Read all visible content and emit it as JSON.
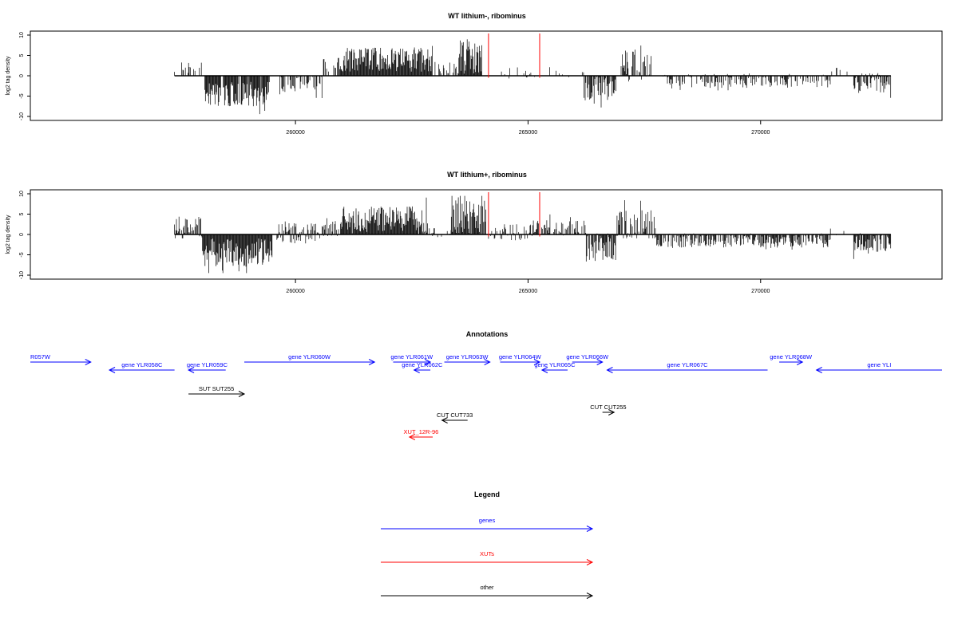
{
  "chart_data": [
    {
      "type": "bar",
      "title": "WT lithium-, ribominus",
      "xlabel": "",
      "ylabel": "log2 tag density",
      "xlim": [
        254300,
        273900
      ],
      "ylim": [
        -10,
        10
      ],
      "x_ticks": [
        "260000",
        "265000",
        "270000"
      ],
      "y_ticks": [
        "-10",
        "-5",
        "0",
        "5",
        "10"
      ],
      "markers": [
        264150,
        265250
      ],
      "marker_color": "#ff0000",
      "bar_color": "#000000",
      "segments": [
        {
          "start": 257400,
          "end": 258000,
          "mean": 2.0,
          "amp": 1.5,
          "density": 0.35
        },
        {
          "start": 258050,
          "end": 259450,
          "mean": -4.5,
          "amp": 3.0,
          "density": 0.95
        },
        {
          "start": 259650,
          "end": 260600,
          "mean": -2.0,
          "amp": 2.0,
          "density": 0.5
        },
        {
          "start": 260600,
          "end": 260950,
          "mean": 2.0,
          "amp": 2.5,
          "density": 0.4
        },
        {
          "start": 260950,
          "end": 262950,
          "mean": 4.0,
          "amp": 3.0,
          "density": 1.0
        },
        {
          "start": 263000,
          "end": 263500,
          "mean": 1.5,
          "amp": 2.0,
          "density": 0.4
        },
        {
          "start": 263500,
          "end": 264020,
          "mean": 4.5,
          "amp": 4.5,
          "density": 1.0
        },
        {
          "start": 264250,
          "end": 265300,
          "mean": 0.8,
          "amp": 1.5,
          "density": 0.12
        },
        {
          "start": 265300,
          "end": 266200,
          "mean": 0.8,
          "amp": 1.2,
          "density": 0.15
        },
        {
          "start": 266200,
          "end": 266900,
          "mean": -3.0,
          "amp": 3.0,
          "density": 0.8
        },
        {
          "start": 267000,
          "end": 267650,
          "mean": 2.5,
          "amp": 4.0,
          "density": 0.55
        },
        {
          "start": 267900,
          "end": 271500,
          "mean": -1.2,
          "amp": 1.8,
          "density": 0.5
        },
        {
          "start": 271500,
          "end": 271950,
          "mean": 1.0,
          "amp": 1.0,
          "density": 0.2
        },
        {
          "start": 272000,
          "end": 272800,
          "mean": -1.8,
          "amp": 2.5,
          "density": 0.8
        }
      ]
    },
    {
      "type": "bar",
      "title": "WT lithium+, ribominus",
      "xlabel": "",
      "ylabel": "log2 tag density",
      "xlim": [
        254300,
        273900
      ],
      "ylim": [
        -10,
        10
      ],
      "x_ticks": [
        "260000",
        "265000",
        "270000"
      ],
      "y_ticks": [
        "-10",
        "-5",
        "0",
        "5",
        "10"
      ],
      "markers": [
        264150,
        265250
      ],
      "marker_color": "#ff0000",
      "bar_color": "#000000",
      "segments": [
        {
          "start": 257400,
          "end": 258000,
          "mean": 1.5,
          "amp": 2.5,
          "density": 0.8
        },
        {
          "start": 258000,
          "end": 259500,
          "mean": -4.5,
          "amp": 3.5,
          "density": 1.0
        },
        {
          "start": 259600,
          "end": 260650,
          "mean": 0.3,
          "amp": 2.5,
          "density": 0.85
        },
        {
          "start": 260650,
          "end": 261000,
          "mean": 2.0,
          "amp": 2.5,
          "density": 0.6
        },
        {
          "start": 261000,
          "end": 262850,
          "mean": 3.5,
          "amp": 3.5,
          "density": 1.0
        },
        {
          "start": 262850,
          "end": 263350,
          "mean": 0.5,
          "amp": 1.5,
          "density": 0.4
        },
        {
          "start": 263350,
          "end": 264100,
          "mean": 4.0,
          "amp": 4.5,
          "density": 1.0
        },
        {
          "start": 264150,
          "end": 265100,
          "mean": 0.5,
          "amp": 2.0,
          "density": 0.55
        },
        {
          "start": 265100,
          "end": 266250,
          "mean": 1.5,
          "amp": 2.0,
          "density": 0.6
        },
        {
          "start": 266250,
          "end": 266900,
          "mean": -3.0,
          "amp": 3.5,
          "density": 0.9
        },
        {
          "start": 266900,
          "end": 267750,
          "mean": 2.5,
          "amp": 3.5,
          "density": 0.8
        },
        {
          "start": 267750,
          "end": 271500,
          "mean": -1.5,
          "amp": 1.8,
          "density": 0.75
        },
        {
          "start": 271500,
          "end": 272000,
          "mean": 0.5,
          "amp": 1.0,
          "density": 0.15
        },
        {
          "start": 272000,
          "end": 272800,
          "mean": -2.0,
          "amp": 2.5,
          "density": 0.9
        }
      ]
    },
    {
      "type": "table",
      "title": "Annotations",
      "xlim": [
        254300,
        273900
      ],
      "items": [
        {
          "label": "R057W",
          "start": 254300,
          "end": 255600,
          "strand": "+",
          "color": "#0000ff",
          "row": 0
        },
        {
          "label": "gene YLR058C",
          "start": 256000,
          "end": 257400,
          "strand": "-",
          "color": "#0000ff",
          "row": 1
        },
        {
          "label": "gene YLR059C",
          "start": 257700,
          "end": 258500,
          "strand": "-",
          "color": "#0000ff",
          "row": 1
        },
        {
          "label": "gene YLR060W",
          "start": 258900,
          "end": 261700,
          "strand": "+",
          "color": "#0000ff",
          "row": 0
        },
        {
          "label": "gene YLR061W",
          "start": 262100,
          "end": 262900,
          "strand": "+",
          "color": "#0000ff",
          "row": 0
        },
        {
          "label": "gene YLR062C",
          "start": 262550,
          "end": 262900,
          "strand": "-",
          "color": "#0000ff",
          "row": 1
        },
        {
          "label": "gene YLR063W",
          "start": 263200,
          "end": 264180,
          "strand": "+",
          "color": "#0000ff",
          "row": 0
        },
        {
          "label": "gene YLR064W",
          "start": 264400,
          "end": 265250,
          "strand": "+",
          "color": "#0000ff",
          "row": 0
        },
        {
          "label": "gene YLR065C",
          "start": 265300,
          "end": 265850,
          "strand": "-",
          "color": "#0000ff",
          "row": 1
        },
        {
          "label": "gene YLR066W",
          "start": 265950,
          "end": 266600,
          "strand": "+",
          "color": "#0000ff",
          "row": 0
        },
        {
          "label": "gene YLR067C",
          "start": 266700,
          "end": 270150,
          "strand": "-",
          "color": "#0000ff",
          "row": 1
        },
        {
          "label": "gene YLR068W",
          "start": 270400,
          "end": 270900,
          "strand": "+",
          "color": "#0000ff",
          "row": 0
        },
        {
          "label": "gene YLI",
          "start": 271200,
          "end": 273900,
          "strand": "-",
          "color": "#0000ff",
          "row": 1
        },
        {
          "label": "SUT SUT255",
          "start": 257700,
          "end": 258900,
          "strand": "+",
          "color": "#000000",
          "row": 3
        },
        {
          "label": "CUT CUT255",
          "start": 266600,
          "end": 266850,
          "strand": "+",
          "color": "#000000",
          "row": 4
        },
        {
          "label": "CUT CUT733",
          "start": 263150,
          "end": 263700,
          "strand": "-",
          "color": "#000000",
          "row": 5
        },
        {
          "label": "XUT_12R-96",
          "start": 262450,
          "end": 262950,
          "strand": "-",
          "color": "#ff0000",
          "row": 6
        }
      ]
    },
    {
      "type": "table",
      "title": "Legend",
      "entries": [
        {
          "label": "genes",
          "color": "#0000ff"
        },
        {
          "label": "XUTs",
          "color": "#ff0000"
        },
        {
          "label": "other",
          "color": "#000000"
        }
      ]
    }
  ]
}
